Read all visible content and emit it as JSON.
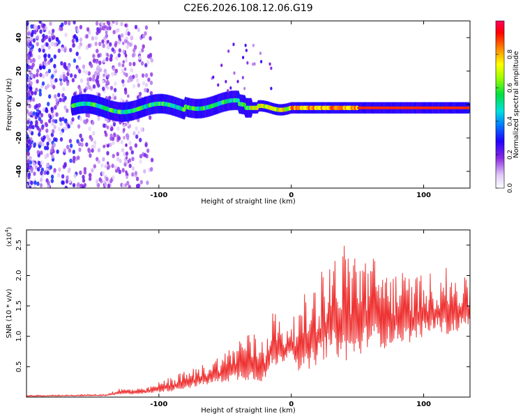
{
  "page": {
    "title": "C2E6.2026.108.12.06.G19"
  },
  "colors": {
    "snr_line": "#ee3333",
    "axis": "#000000",
    "background": "#ffffff"
  },
  "chart_data": [
    {
      "type": "heatmap",
      "title": "C2E6.2026.108.12.06.G19",
      "xlabel": "Height of straight line (km)",
      "ylabel": "Frequency (Hz)",
      "xlim": [
        -200,
        135
      ],
      "ylim": [
        -50,
        50
      ],
      "x_ticks": [
        -100,
        0,
        100
      ],
      "y_ticks": [
        -40,
        -20,
        0,
        20,
        40
      ],
      "colorbar": {
        "label": "Normalized spectral amplitude",
        "range": [
          0,
          1
        ],
        "ticks": [
          "0.0",
          "0.2",
          "0.4",
          "0.6",
          "0.8"
        ]
      },
      "ridge": {
        "name": "dominant frequency",
        "frequency_hz": -2,
        "x_start": -165,
        "x_end": 135
      }
    },
    {
      "type": "line",
      "xlabel": "Height of straight line (km)",
      "ylabel": "SNR (10 * v/v)",
      "y_scale_label": "(x10",
      "y_scale_exponent": "4",
      "xlim": [
        -200,
        135
      ],
      "ylim": [
        0,
        2.75
      ],
      "x_ticks": [
        -100,
        0,
        100
      ],
      "y_ticks": [
        "0.5",
        "1.0",
        "1.5",
        "2.0",
        "2.5"
      ],
      "series": [
        {
          "name": "SNR",
          "color": "#ee3333",
          "envelope": {
            "x": [
              -200,
              -140,
              -130,
              -110,
              -90,
              -70,
              -50,
              -35,
              -20,
              -15,
              -5,
              0,
              5,
              10,
              20,
              30,
              40,
              50,
              60,
              70,
              80,
              90,
              100,
              110,
              120,
              135
            ],
            "base": [
              0.01,
              0.02,
              0.04,
              0.06,
              0.1,
              0.18,
              0.25,
              0.28,
              0.25,
              0.45,
              0.6,
              0.75,
              0.45,
              0.35,
              0.55,
              0.7,
              0.6,
              0.6,
              0.9,
              0.8,
              0.9,
              0.9,
              1.0,
              1.1,
              1.0,
              1.2
            ],
            "upper": [
              0.03,
              0.05,
              0.14,
              0.14,
              0.35,
              0.5,
              0.75,
              1.1,
              1.0,
              1.55,
              1.1,
              1.3,
              1.35,
              1.7,
              2.0,
              2.35,
              2.55,
              2.5,
              2.35,
              2.2,
              2.1,
              2.0,
              2.05,
              2.05,
              2.15,
              1.9
            ]
          }
        }
      ]
    }
  ]
}
